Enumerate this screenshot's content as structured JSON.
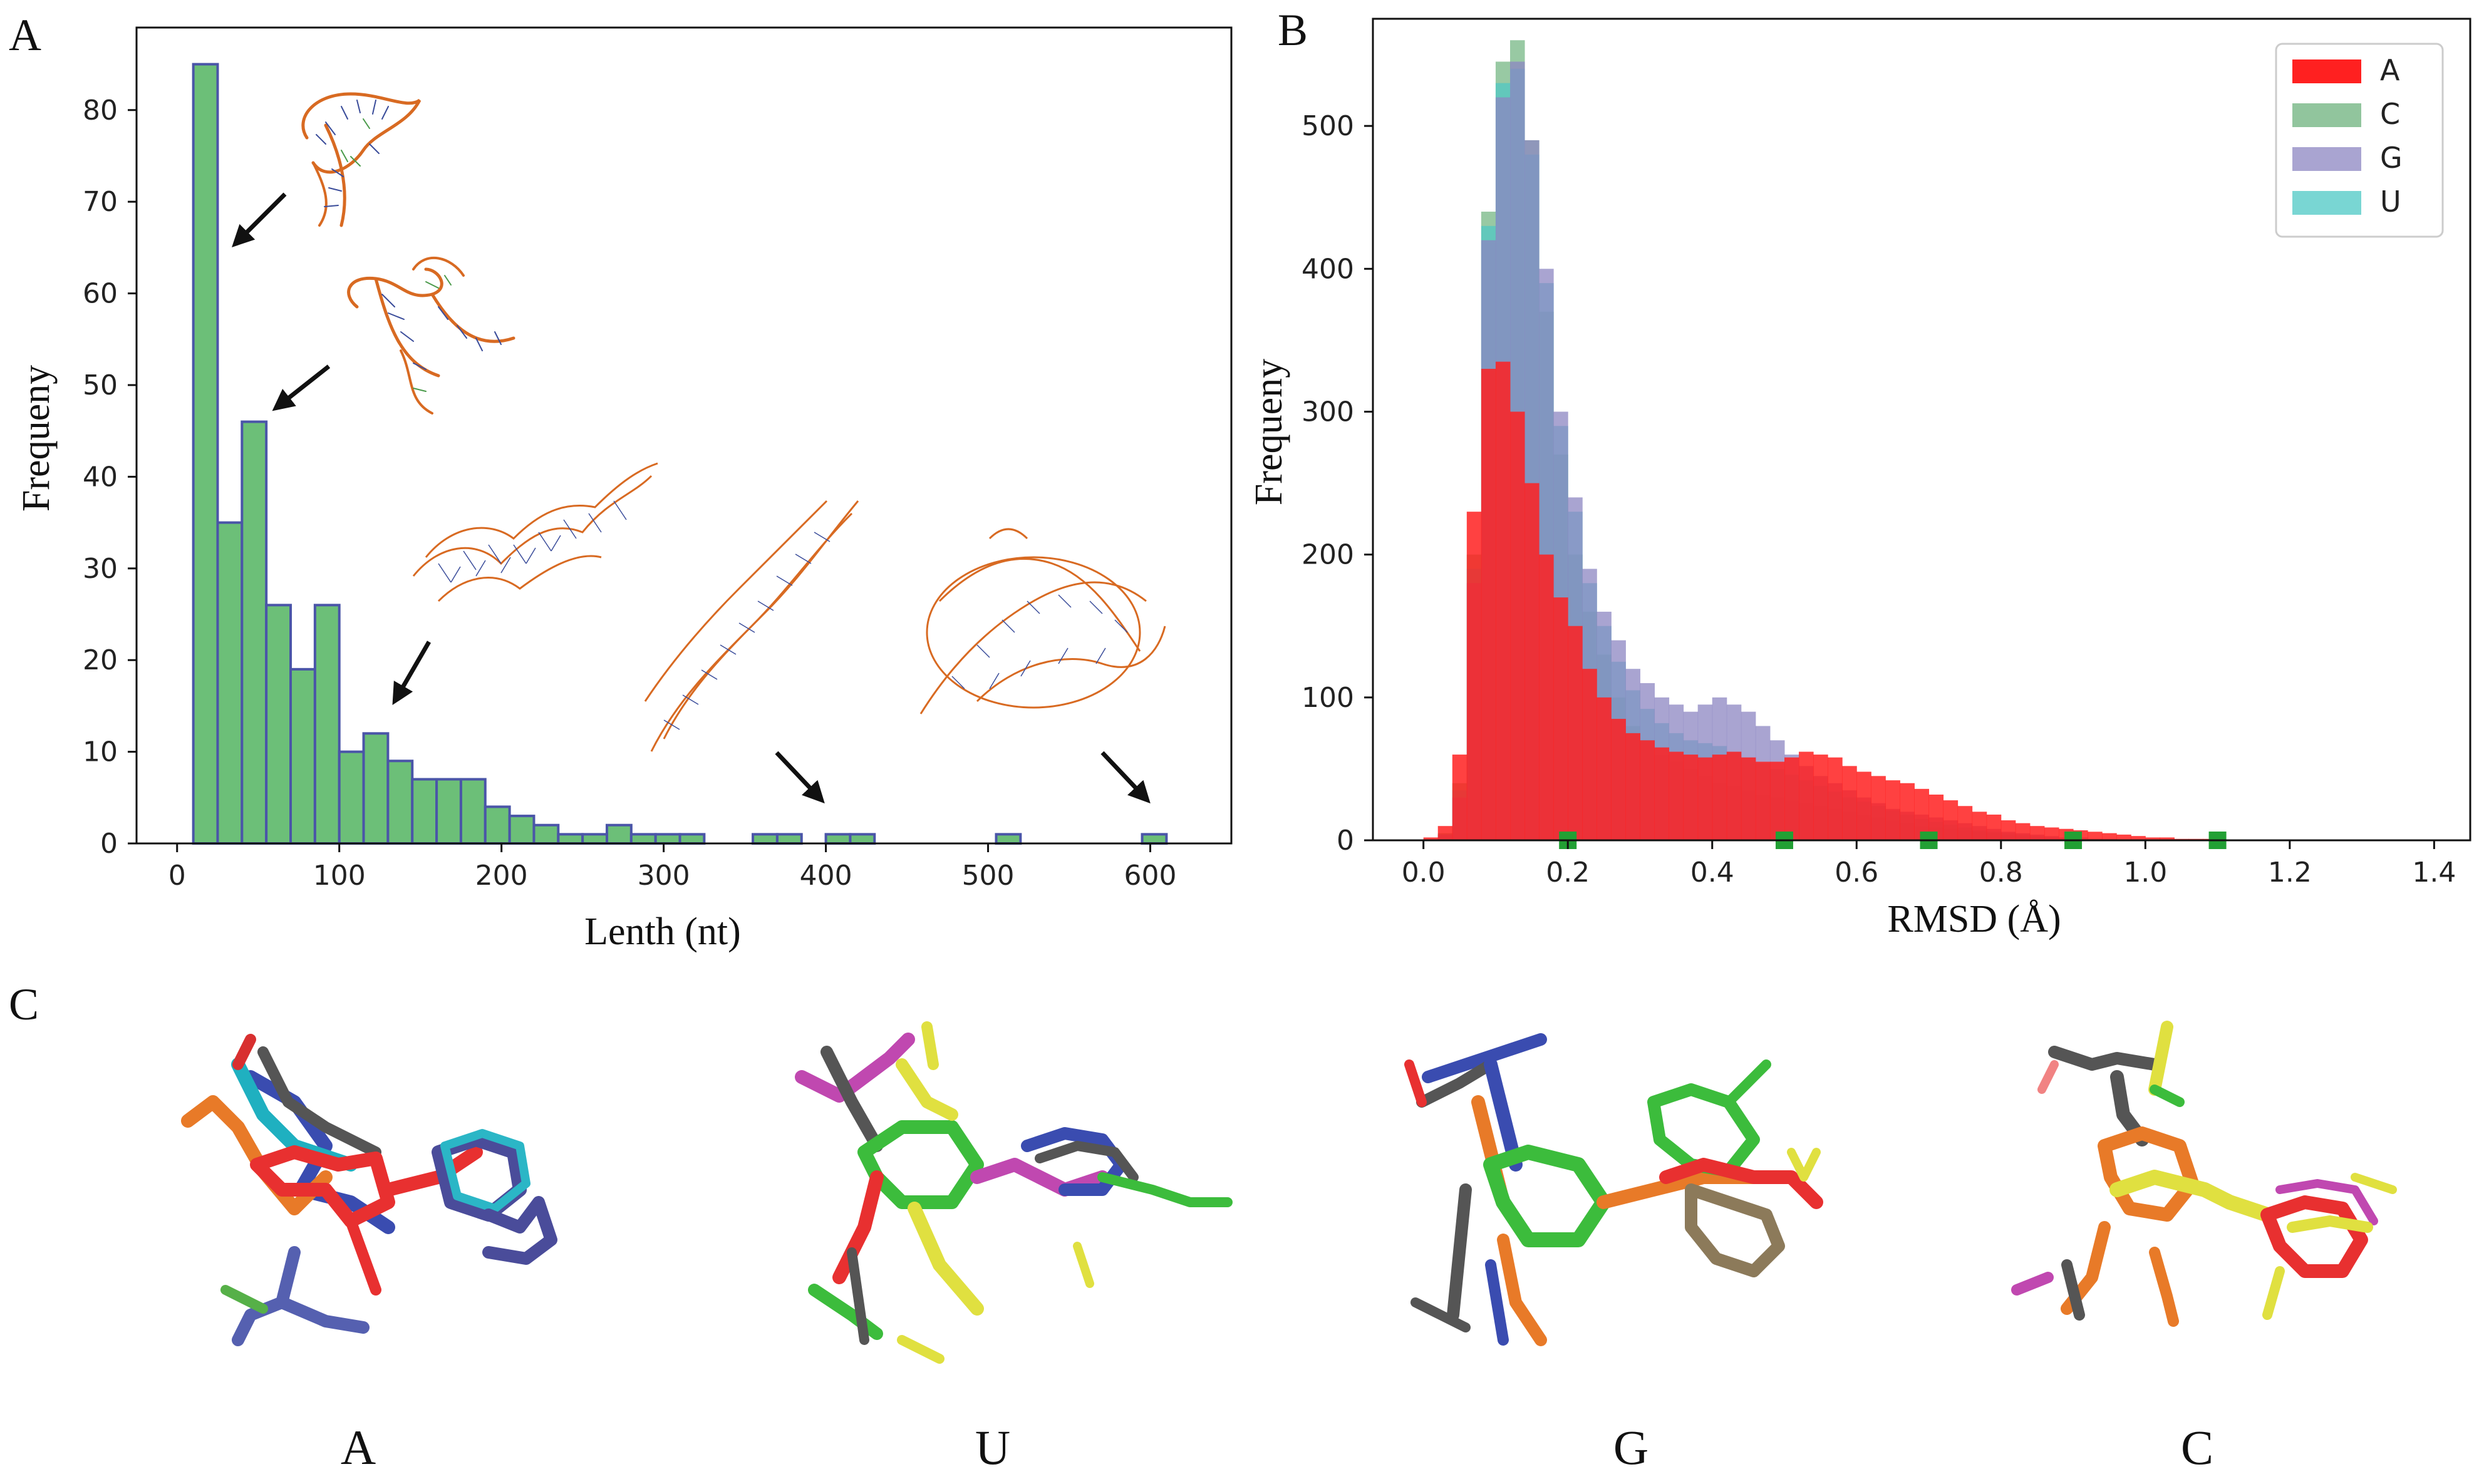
{
  "panel_labels": {
    "a": "A",
    "b": "B",
    "c": "C"
  },
  "bottom_labels": [
    "A",
    "U",
    "G",
    "C"
  ],
  "colors": {
    "hist_fill": "#6cbf78",
    "hist_edge": "#4a55a8",
    "A": "#ff2020",
    "C": "#6cb27c",
    "G": "#8c86c2",
    "U": "#4cc8c4",
    "marker": "#22a034"
  },
  "chart_data": [
    {
      "id": "panel-a",
      "type": "bar",
      "title": "",
      "xlabel": "Lenth (nt)",
      "ylabel": "Frequeny",
      "xlim": [
        -25,
        650
      ],
      "ylim": [
        0,
        89
      ],
      "xticks": [
        0,
        100,
        200,
        300,
        400,
        500,
        600
      ],
      "yticks": [
        0,
        10,
        20,
        30,
        40,
        50,
        60,
        70,
        80
      ],
      "bin_width": 15,
      "bin_start": 10,
      "values": [
        85,
        35,
        46,
        26,
        19,
        26,
        10,
        12,
        9,
        7,
        7,
        7,
        4,
        3,
        2,
        1,
        1,
        2,
        1,
        1,
        1,
        0,
        0,
        1,
        1,
        0,
        1,
        1,
        0,
        0,
        0,
        0,
        0,
        1,
        0,
        0,
        0,
        0,
        0,
        1
      ],
      "annotations": [
        "arrow to ~40 nt",
        "arrow to ~65 nt",
        "arrow to ~135 nt",
        "arrow to ~400 nt",
        "arrow to ~600 nt"
      ]
    },
    {
      "id": "panel-b",
      "type": "histogram",
      "title": "",
      "xlabel": "RMSD  (Å)",
      "ylabel": "Frequeny",
      "xlim": [
        -0.07,
        1.45
      ],
      "ylim": [
        0,
        575
      ],
      "xticks": [
        0.0,
        0.2,
        0.4,
        0.6,
        0.8,
        1.0,
        1.2,
        1.4
      ],
      "xtick_labels": [
        "0.0",
        "0.2",
        "0.4",
        "0.6",
        "0.8",
        "1.0",
        "1.2",
        "1.4"
      ],
      "yticks": [
        0,
        100,
        200,
        300,
        400,
        500
      ],
      "legend_position": "top-right",
      "legend": [
        "A",
        "C",
        "G",
        "U"
      ],
      "marker_positions": [
        0.2,
        0.5,
        0.7,
        0.9,
        1.1
      ],
      "series": [
        {
          "name": "A",
          "x0": 0.0,
          "dx": 0.02,
          "values": [
            2,
            10,
            60,
            230,
            330,
            335,
            300,
            250,
            200,
            170,
            150,
            120,
            100,
            85,
            75,
            70,
            65,
            62,
            60,
            58,
            60,
            62,
            58,
            55,
            55,
            58,
            62,
            60,
            58,
            52,
            48,
            45,
            42,
            40,
            36,
            32,
            28,
            24,
            20,
            18,
            14,
            12,
            10,
            9,
            8,
            7,
            6,
            5,
            4,
            3,
            2,
            2,
            1,
            1,
            1,
            0,
            0,
            0,
            0,
            0
          ]
        },
        {
          "name": "C",
          "x0": 0.0,
          "dx": 0.02,
          "values": [
            0,
            5,
            40,
            200,
            440,
            545,
            560,
            490,
            370,
            270,
            200,
            160,
            130,
            100,
            80,
            70,
            60,
            55,
            50,
            45,
            40,
            38,
            35,
            32,
            30,
            28,
            26,
            24,
            22,
            20,
            18,
            16,
            14,
            12,
            10,
            9,
            8,
            7,
            6,
            5,
            4,
            3,
            2,
            2,
            1,
            1,
            1,
            0,
            0,
            0,
            0,
            0,
            0,
            0,
            0,
            0,
            0,
            0,
            0,
            0
          ]
        },
        {
          "name": "G",
          "x0": 0.0,
          "dx": 0.02,
          "values": [
            0,
            4,
            30,
            180,
            420,
            520,
            545,
            490,
            400,
            300,
            240,
            190,
            160,
            140,
            120,
            110,
            100,
            95,
            90,
            95,
            100,
            95,
            90,
            80,
            70,
            60,
            52,
            45,
            40,
            35,
            30,
            26,
            22,
            20,
            18,
            16,
            14,
            12,
            10,
            8,
            6,
            5,
            4,
            3,
            2,
            2,
            1,
            1,
            0,
            0,
            0,
            0,
            0,
            0,
            0,
            0,
            0,
            0,
            0,
            0
          ]
        },
        {
          "name": "U",
          "x0": 0.0,
          "dx": 0.02,
          "values": [
            0,
            4,
            35,
            190,
            430,
            530,
            540,
            480,
            390,
            290,
            230,
            180,
            150,
            125,
            105,
            92,
            82,
            75,
            70,
            68,
            66,
            62,
            58,
            54,
            50,
            46,
            42,
            38,
            34,
            30,
            27,
            24,
            21,
            18,
            15,
            13,
            11,
            9,
            7,
            6,
            5,
            4,
            3,
            2,
            1,
            1,
            1,
            0,
            0,
            0,
            0,
            0,
            0,
            0,
            0,
            0,
            0,
            0,
            0,
            0
          ]
        }
      ]
    }
  ]
}
